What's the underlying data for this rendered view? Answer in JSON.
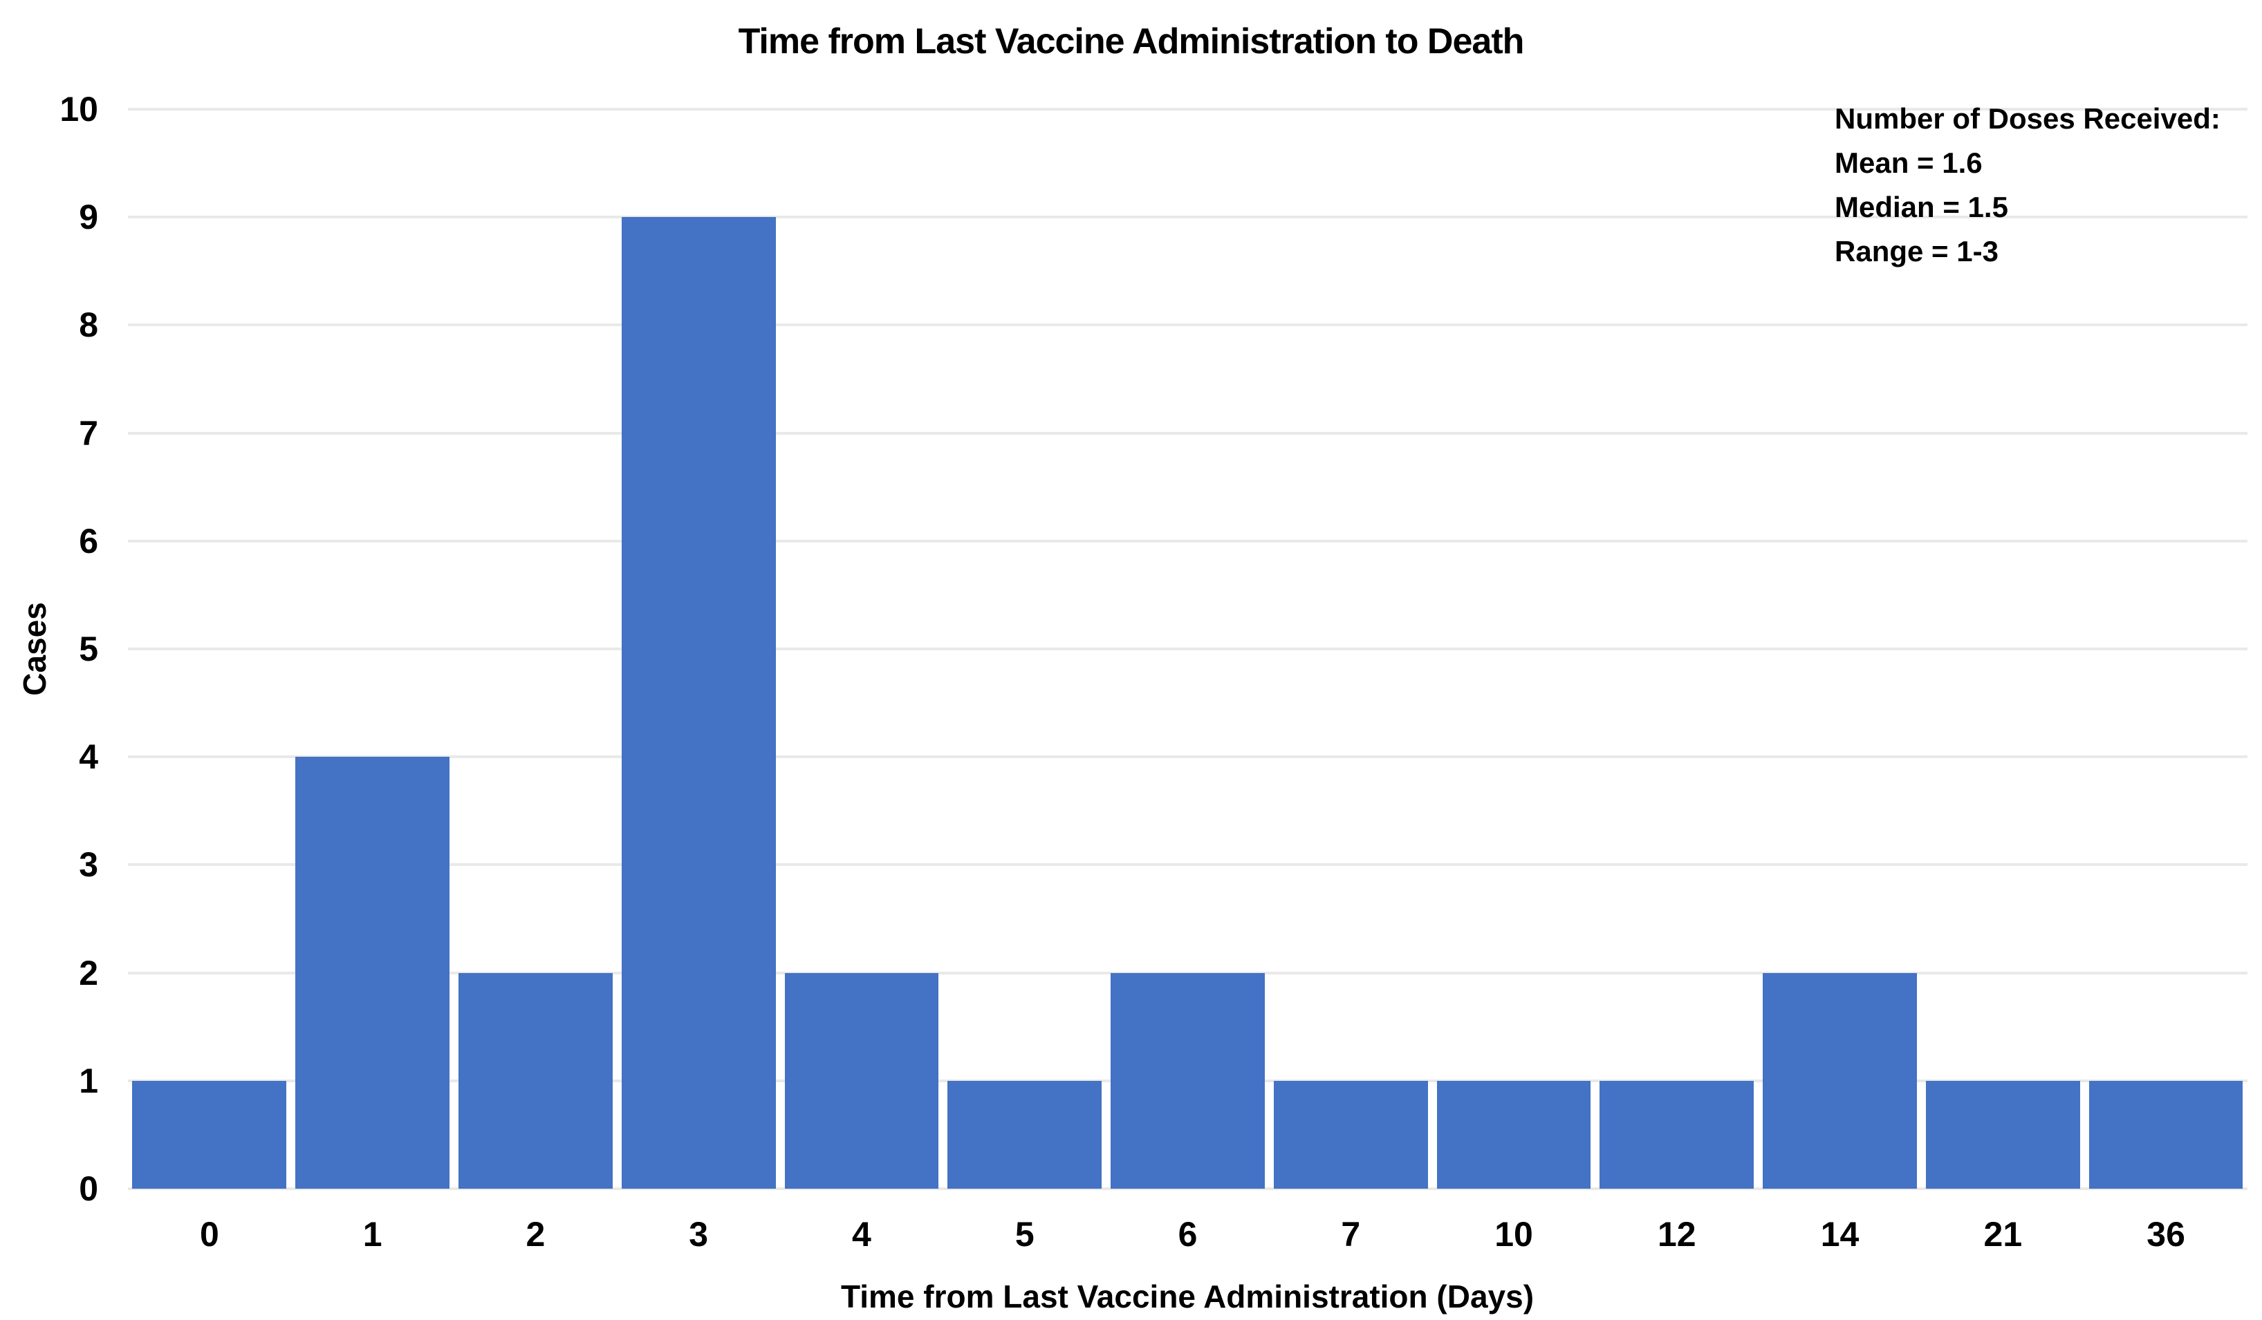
{
  "chart_data": {
    "type": "bar",
    "title": "Time from Last Vaccine Administration to Death",
    "xlabel": "Time from Last Vaccine Administration (Days)",
    "ylabel": "Cases",
    "categories": [
      "0",
      "1",
      "2",
      "3",
      "4",
      "5",
      "6",
      "7",
      "10",
      "12",
      "14",
      "21",
      "36"
    ],
    "values": [
      1,
      4,
      2,
      9,
      2,
      1,
      2,
      1,
      1,
      1,
      2,
      1,
      1
    ],
    "ylim": [
      0,
      10
    ],
    "ytick_step": 1,
    "grid": "horizontal",
    "legend": "none",
    "bar_color": "#4472C4",
    "gridline_color": "#e9e9e9",
    "text_color": "#000000",
    "annotation": {
      "lines": [
        "Number of Doses Received:",
        "Mean = 1.6",
        "Median = 1.5",
        "Range = 1-3"
      ]
    }
  }
}
